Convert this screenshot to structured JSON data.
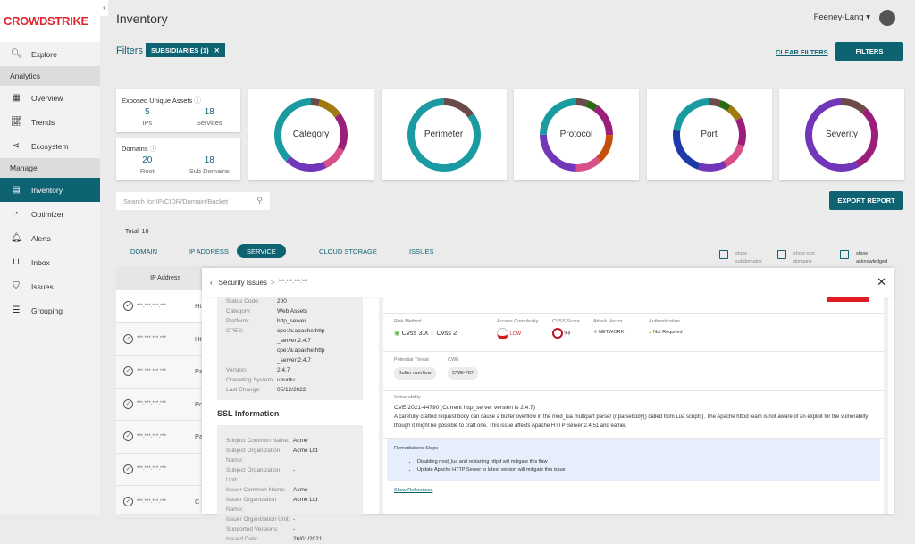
{
  "brand": "CROWDSTRIKE",
  "sidebar": {
    "items": [
      {
        "label": "Explore",
        "icon": "search-icon",
        "type": "item"
      },
      {
        "label": "Analytics",
        "type": "section"
      },
      {
        "label": "Overview",
        "icon": "grid-icon",
        "type": "item"
      },
      {
        "label": "Trends",
        "icon": "chart-icon",
        "type": "item"
      },
      {
        "label": "Ecosystem",
        "icon": "share-icon",
        "type": "item"
      },
      {
        "label": "Manage",
        "type": "section"
      },
      {
        "label": "Inventory",
        "icon": "table-icon",
        "type": "item",
        "active": true
      },
      {
        "label": "Optimizer",
        "icon": "gauge-icon",
        "type": "item"
      },
      {
        "label": "Alerts",
        "icon": "bell-icon",
        "type": "item"
      },
      {
        "label": "Inbox",
        "icon": "inbox-icon",
        "type": "item"
      },
      {
        "label": "Issues",
        "icon": "shield-icon",
        "type": "item"
      },
      {
        "label": "Grouping",
        "icon": "list-icon",
        "type": "item"
      }
    ]
  },
  "header": {
    "title": "Inventory",
    "user": "Feeney-Lang"
  },
  "filters": {
    "label": "Filters",
    "chip": "SUBSIDIARIES (1)",
    "clear": "CLEAR FILTERS",
    "button": "FILTERS"
  },
  "stats": {
    "assets": {
      "title": "Exposed Unique Assets",
      "ips": "5",
      "ips_label": "IPs",
      "services": "18",
      "services_label": "Services"
    },
    "domains": {
      "title": "Domains",
      "root": "20",
      "root_label": "Root",
      "sub": "18",
      "sub_label": "Sub Domains"
    }
  },
  "colors": {
    "accent": "#0e6373",
    "teal": "#1a9ba1",
    "brown": "#6b4a4a",
    "olive": "#a07a10",
    "magenta": "#9b1f7a",
    "pink": "#d8508a",
    "purple": "#7236b8",
    "green": "#2a6a12",
    "orange": "#c4500a",
    "blue": "#1e3aa8"
  },
  "donuts": [
    {
      "label": "Category",
      "segments": [
        [
          "brown",
          0.04
        ],
        [
          "olive",
          0.11
        ],
        [
          "magenta",
          0.17
        ],
        [
          "pink",
          0.11
        ],
        [
          "purple",
          0.19
        ],
        [
          "teal",
          0.38
        ]
      ]
    },
    {
      "label": "Perimeter",
      "segments": [
        [
          "brown",
          0.15
        ],
        [
          "teal",
          0.85
        ]
      ]
    },
    {
      "label": "Protocol",
      "segments": [
        [
          "brown",
          0.05
        ],
        [
          "green",
          0.05
        ],
        [
          "magenta",
          0.15
        ],
        [
          "orange",
          0.13
        ],
        [
          "pink",
          0.12
        ],
        [
          "purple",
          0.25
        ],
        [
          "teal",
          0.25
        ]
      ]
    },
    {
      "label": "Port",
      "segments": [
        [
          "brown",
          0.05
        ],
        [
          "green",
          0.05
        ],
        [
          "olive",
          0.07
        ],
        [
          "magenta",
          0.13
        ],
        [
          "pink",
          0.12
        ],
        [
          "purple",
          0.13
        ],
        [
          "blue",
          0.22
        ],
        [
          "teal",
          0.23
        ]
      ]
    },
    {
      "label": "Severity",
      "segments": [
        [
          "brown",
          0.12
        ],
        [
          "magenta",
          0.3
        ],
        [
          "purple",
          0.58
        ]
      ]
    }
  ],
  "search": {
    "placeholder": "Search for IP/CIDR/Domain/Bucket"
  },
  "export": "EXPORT REPORT",
  "total": "Total: 18",
  "tabs": [
    "DOMAIN",
    "IP ADDRESS",
    "SERVICE",
    "CLOUD STORAGE",
    "ISSUES"
  ],
  "checkboxes": [
    "show subdomains",
    "show root domains",
    "show acknowledged"
  ],
  "table": {
    "header": "IP Address",
    "rows": [
      {
        "ip": "***.***.***.***",
        "extra": "Ht"
      },
      {
        "ip": "***.***.***.***",
        "extra": "Ht"
      },
      {
        "ip": "***.***.***.***",
        "extra": "Par"
      },
      {
        "ip": "***.***.***.***",
        "extra": "Po"
      },
      {
        "ip": "***.***.***.***",
        "extra": "Par"
      },
      {
        "ip": "***.***.***.***",
        "extra": ""
      },
      {
        "ip": "***.***.***.***",
        "extra": "C"
      }
    ]
  },
  "modal": {
    "breadcrumb": "Security Issues",
    "target": "***.***.***.***",
    "details": [
      [
        "Status Code:",
        "200"
      ],
      [
        "Category:",
        "Web Assets"
      ],
      [
        "Platform:",
        "http_server"
      ],
      [
        "CPES:",
        "cpe:/a:apache:http_server:2.4.7"
      ],
      [
        "",
        "cpe:/a:apache:http_server:2.4.7"
      ],
      [
        "Version:",
        "2.4.7"
      ],
      [
        "Operating System:",
        "ubuntu"
      ],
      [
        "Last Change:",
        "05/12/2022"
      ]
    ],
    "ssl_title": "SSL Information",
    "ssl": [
      [
        "Subject Common Name:",
        "Acme"
      ],
      [
        "Subject Organization Name:",
        "Acme Ltd"
      ],
      [
        "Subject Organization Unit:",
        "-"
      ],
      [
        "Issuer Common Name:",
        "Acme"
      ],
      [
        "Issuer Organization Name:",
        "Acme Ltd"
      ],
      [
        "Issuer Organization Unit:",
        "-"
      ],
      [
        "Supported Versions:",
        "-"
      ],
      [
        "Issued Date:",
        "26/01/2021"
      ]
    ],
    "risk": {
      "method_label": "Risk Method",
      "opt1": "Cvss 3.X",
      "opt2": "Cvss 2",
      "ac_label": "Access Complexity",
      "ac": "LOW",
      "score_label": "CVSS Score",
      "score": "9.8",
      "av_label": "Attack Vector",
      "av": "NETWORK",
      "auth_label": "Authentication",
      "auth": "Not Required"
    },
    "threat_label": "Potential Threat",
    "threat": "Buffer overflow",
    "cwe_label": "CWE",
    "cwe": "CWE-787",
    "vuln_label": "Vulnerability",
    "cve": "CVE-2021-44790 (Current http_server version is 2.4.7)",
    "desc": "A carefully crafted request body can cause a buffer overflow in the mod_lua multipart parser (r:parsebody() called from Lua scripts). The Apache httpd team is not aware of an exploit for the vulnerabilty though it might be possible to craft one. This issue affects Apache HTTP Server 2.4.51 and earlier.",
    "rem_title": "Remediations Steps",
    "rem": [
      "Disabling mod_lua and restarting httpd will mitigate this flaw",
      "Update Apache HTTP Server to latest version will mitigate this issue"
    ],
    "refs": "Show References"
  }
}
